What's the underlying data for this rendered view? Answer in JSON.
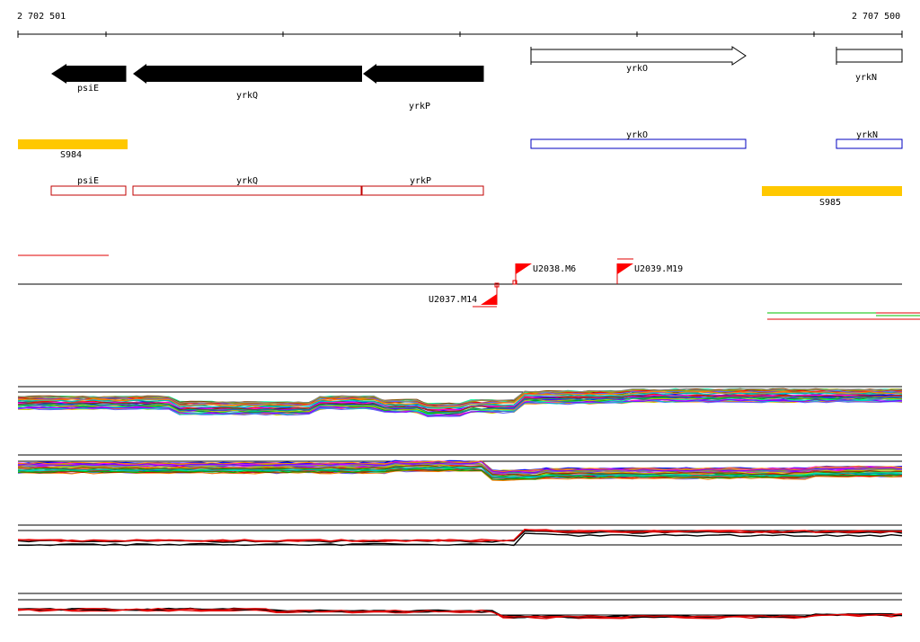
{
  "axis": {
    "start_label": "2 702 501",
    "end_label": "2 707 500"
  },
  "genes": [
    {
      "name": "psiE",
      "strand": "-"
    },
    {
      "name": "yrkQ",
      "strand": "-"
    },
    {
      "name": "yrkP",
      "strand": "-"
    },
    {
      "name": "yrkO",
      "strand": "+"
    },
    {
      "name": "yrkN",
      "strand": "+"
    }
  ],
  "rna_features": [
    "S984",
    "S985"
  ],
  "transcripts": [
    "psiE",
    "yrkQ",
    "yrkP",
    "yrkO",
    "yrkN"
  ],
  "markers": [
    "U2038.M6",
    "U2039.M19",
    "U2037.M14"
  ],
  "colors": {
    "gene_minus": "#000000",
    "gene_plus": "#ffffff",
    "rna_feature": "#ffc800",
    "transcript_plus": "#0000c0",
    "transcript_minus": "#c00000",
    "marker": "#ff0000",
    "expr_red": "#e00000",
    "expr_green": "#00c000"
  }
}
